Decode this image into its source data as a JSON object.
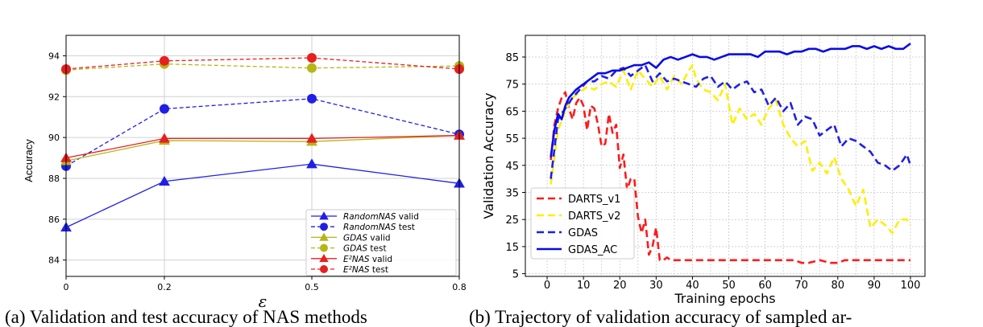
{
  "captions": {
    "left": "(a) Validation and test accuracy of NAS methods",
    "right": "(b) Trajectory of validation accuracy of sampled ar-"
  },
  "chart_data": [
    {
      "type": "line",
      "xlabel": "ε",
      "ylabel": "Accuracy",
      "categories": [
        "0",
        "0.2",
        "0.5",
        "0.8"
      ],
      "ylim": [
        83.2,
        95.0
      ],
      "yticks": [
        84,
        86,
        88,
        90,
        92,
        94
      ],
      "grid": true,
      "legend_position": "bottom-right",
      "series": [
        {
          "name": "RandomNAS valid",
          "name_parts": [
            "RandomNAS",
            " valid"
          ],
          "color": "#1f1fe6",
          "marker": "triangle",
          "dash": false,
          "values": [
            85.6,
            87.85,
            88.7,
            87.75
          ]
        },
        {
          "name": "RandomNAS test",
          "name_parts": [
            "RandomNAS",
            " test"
          ],
          "color": "#1f1fe6",
          "marker": "circle",
          "dash": true,
          "values": [
            88.6,
            91.4,
            91.9,
            90.15
          ]
        },
        {
          "name": "GDAS valid",
          "name_parts": [
            "GDAS",
            " valid"
          ],
          "color": "#b5b517",
          "marker": "triangle",
          "dash": false,
          "values": [
            88.85,
            89.85,
            89.8,
            90.1
          ]
        },
        {
          "name": "GDAS test",
          "name_parts": [
            "GDAS",
            " test"
          ],
          "color": "#b5b517",
          "marker": "circle",
          "dash": true,
          "values": [
            93.3,
            93.6,
            93.4,
            93.5
          ]
        },
        {
          "name": "E2NAS valid",
          "name_parts": [
            "E²NAS",
            " valid"
          ],
          "color": "#e61f1f",
          "marker": "triangle",
          "dash": false,
          "values": [
            89.0,
            89.95,
            89.95,
            90.1
          ]
        },
        {
          "name": "E2NAS test",
          "name_parts": [
            "E²NAS",
            " test"
          ],
          "color": "#e61f1f",
          "marker": "circle",
          "dash": true,
          "values": [
            93.35,
            93.75,
            93.9,
            93.35
          ]
        }
      ]
    },
    {
      "type": "line",
      "xlabel": "Training epochs",
      "ylabel": "Validation Accuracy",
      "xlim": [
        -6,
        104
      ],
      "ylim": [
        4,
        93
      ],
      "xticks": [
        0,
        10,
        20,
        30,
        40,
        50,
        60,
        70,
        80,
        90,
        100
      ],
      "yticks": [
        5,
        15,
        25,
        35,
        45,
        55,
        65,
        75,
        85
      ],
      "grid": true,
      "legend_position": "bottom-left",
      "series": [
        {
          "name": "DARTS_v1",
          "color": "#ff1a1a",
          "dash": true,
          "x": [
            1,
            2,
            3,
            4,
            5,
            6,
            7,
            8,
            9,
            10,
            11,
            12,
            13,
            14,
            15,
            16,
            17,
            18,
            19,
            20,
            21,
            22,
            23,
            24,
            25,
            26,
            27,
            28,
            29,
            30,
            31,
            32,
            33,
            34,
            35,
            38,
            40,
            42,
            45,
            48,
            50,
            55,
            58,
            60,
            65,
            68,
            70,
            72,
            75,
            78,
            80,
            82,
            85,
            88,
            90,
            95,
            98,
            100
          ],
          "y": [
            47,
            60,
            66,
            70,
            72,
            66,
            62,
            68,
            70,
            67,
            58,
            67,
            66,
            60,
            52,
            53,
            64,
            57,
            60,
            44,
            49,
            36,
            40,
            40,
            26,
            20,
            25,
            12,
            15,
            22,
            10,
            10,
            11,
            10,
            10,
            10,
            10,
            10,
            10,
            10,
            10,
            10,
            10,
            10,
            10,
            10,
            9,
            9,
            10,
            9,
            9,
            10,
            10,
            10,
            10,
            10,
            10,
            10
          ]
        },
        {
          "name": "DARTS_v2",
          "color": "#ffee00",
          "dash": true,
          "x": [
            1,
            3,
            5,
            7,
            9,
            11,
            13,
            15,
            17,
            19,
            21,
            23,
            25,
            27,
            29,
            31,
            33,
            35,
            37,
            39,
            40,
            41,
            43,
            45,
            47,
            49,
            51,
            53,
            55,
            57,
            59,
            61,
            63,
            65,
            67,
            69,
            71,
            73,
            75,
            77,
            79,
            81,
            83,
            85,
            87,
            89,
            91,
            93,
            95,
            97,
            99,
            100
          ],
          "y": [
            38,
            58,
            65,
            70,
            72,
            74,
            73,
            75,
            76,
            74,
            80,
            73,
            80,
            77,
            74,
            78,
            73,
            78,
            75,
            80,
            82,
            77,
            73,
            72,
            69,
            75,
            60,
            66,
            62,
            64,
            60,
            66,
            69,
            60,
            55,
            52,
            54,
            43,
            46,
            42,
            48,
            40,
            36,
            30,
            36,
            22,
            25,
            23,
            20,
            25,
            25,
            23
          ]
        },
        {
          "name": "GDAS",
          "color": "#1f1fe6",
          "dash": true,
          "x": [
            1,
            3,
            5,
            7,
            9,
            11,
            13,
            15,
            17,
            19,
            21,
            23,
            25,
            27,
            29,
            31,
            33,
            35,
            37,
            39,
            41,
            43,
            45,
            47,
            49,
            51,
            53,
            55,
            57,
            59,
            61,
            63,
            65,
            67,
            69,
            71,
            73,
            75,
            77,
            79,
            81,
            83,
            85,
            87,
            89,
            91,
            93,
            95,
            97,
            99,
            100
          ],
          "y": [
            40,
            62,
            66,
            70,
            73,
            76,
            76,
            78,
            77,
            80,
            81,
            78,
            80,
            82,
            76,
            79,
            76,
            77,
            76,
            75,
            74,
            77,
            78,
            74,
            76,
            73,
            75,
            76,
            72,
            73,
            67,
            70,
            65,
            68,
            60,
            63,
            62,
            56,
            58,
            60,
            52,
            55,
            54,
            52,
            50,
            46,
            45,
            43,
            45,
            49,
            45
          ]
        },
        {
          "name": "GDAS_AC",
          "color": "#0a0ae6",
          "dash": false,
          "x": [
            1,
            2,
            3,
            4,
            5,
            6,
            8,
            10,
            12,
            14,
            16,
            18,
            20,
            22,
            24,
            26,
            28,
            30,
            32,
            34,
            36,
            38,
            40,
            42,
            44,
            46,
            48,
            50,
            52,
            54,
            56,
            58,
            60,
            62,
            64,
            66,
            68,
            70,
            72,
            74,
            76,
            78,
            80,
            82,
            84,
            86,
            88,
            90,
            92,
            94,
            96,
            98,
            99,
            100
          ],
          "y": [
            48,
            58,
            64,
            62,
            67,
            70,
            73,
            75,
            77,
            79,
            79,
            80,
            80,
            81,
            82,
            82,
            83,
            81,
            84,
            85,
            84,
            85,
            86,
            85,
            85,
            84,
            85,
            86,
            86,
            86,
            86,
            85,
            87,
            87,
            87,
            86,
            87,
            87,
            88,
            88,
            87,
            88,
            88,
            88,
            89,
            89,
            88,
            89,
            88,
            89,
            88,
            88,
            89,
            90
          ]
        }
      ]
    }
  ]
}
